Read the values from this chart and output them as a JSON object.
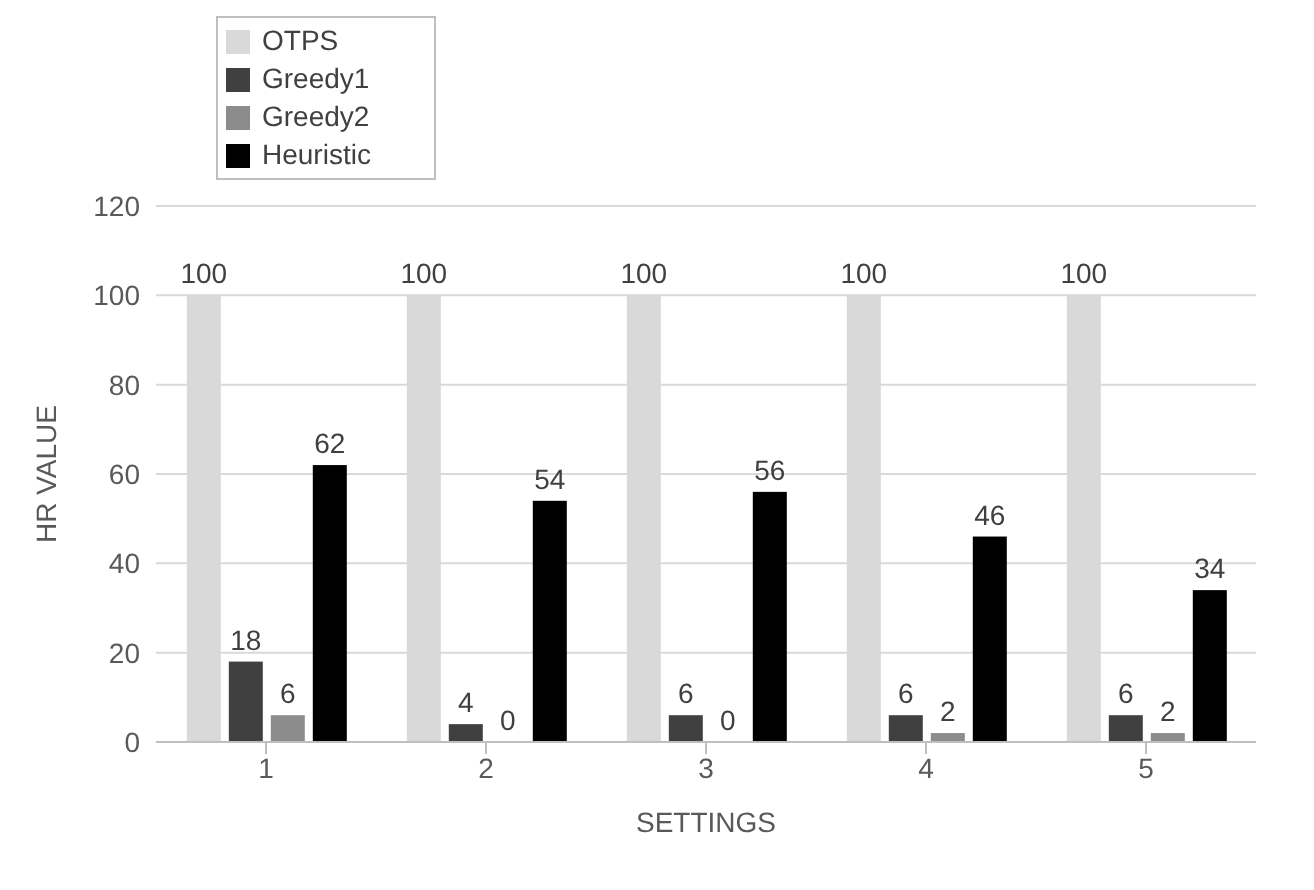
{
  "chart_data": {
    "type": "bar",
    "xlabel": "SETTINGS",
    "ylabel": "HR VALUE",
    "categories": [
      "1",
      "2",
      "3",
      "4",
      "5"
    ],
    "series": [
      {
        "name": "OTPS",
        "color": "#d9d9d9",
        "values": [
          100,
          100,
          100,
          100,
          100
        ]
      },
      {
        "name": "Greedy1",
        "color": "#404040",
        "values": [
          18,
          4,
          6,
          6,
          6
        ]
      },
      {
        "name": "Greedy2",
        "color": "#8c8c8c",
        "values": [
          6,
          0,
          0,
          2,
          2
        ]
      },
      {
        "name": "Heuristic",
        "color": "#000000",
        "values": [
          62,
          54,
          56,
          46,
          34
        ]
      }
    ],
    "ylim": [
      0,
      120
    ],
    "yticks": [
      0,
      20,
      40,
      60,
      80,
      100,
      120
    ],
    "grid": "y",
    "legend": "top left",
    "data_labels": true
  }
}
